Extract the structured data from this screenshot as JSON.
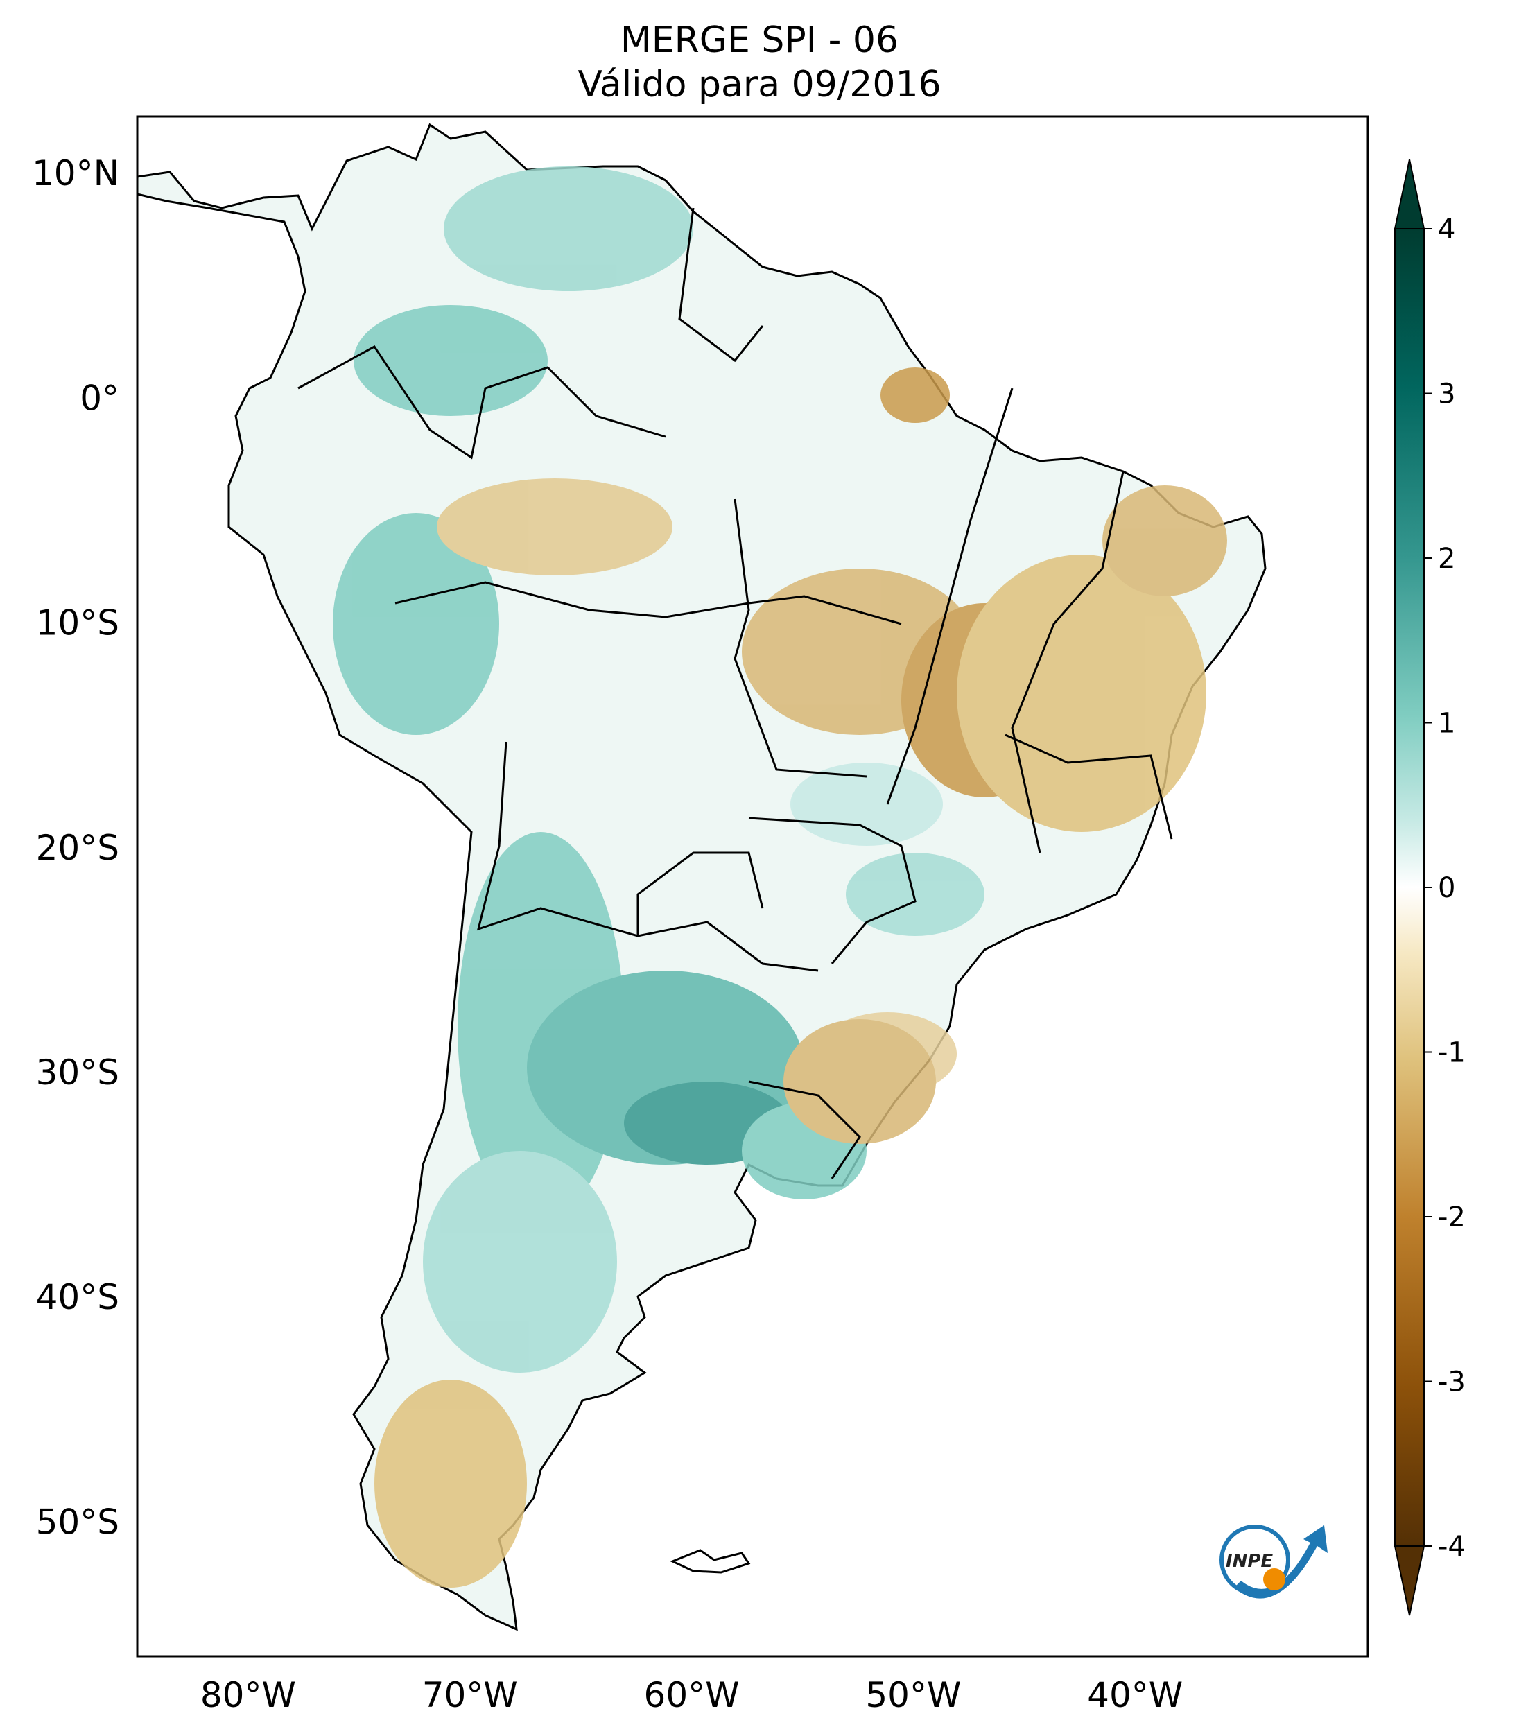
{
  "title": {
    "line1": "MERGE   SPI - 06",
    "line2": "Válido para 09/2016"
  },
  "map": {
    "lat_labels": [
      "10°N",
      "0°",
      "10°S",
      "20°S",
      "30°S",
      "40°S",
      "50°S"
    ],
    "lon_labels": [
      "80°W",
      "70°W",
      "60°W",
      "50°W",
      "40°W"
    ],
    "lat_values": [
      10,
      0,
      -10,
      -20,
      -30,
      -40,
      -50
    ],
    "lon_values": [
      -80,
      -70,
      -60,
      -50,
      -40
    ],
    "extent": {
      "lon_min": -85,
      "lon_max": -29.5,
      "lat_min": -56,
      "lat_max": 12.5
    }
  },
  "colorbar": {
    "ticks": [
      "4",
      "3",
      "2",
      "1",
      "0",
      "-1",
      "-2",
      "-3",
      "-4"
    ],
    "values": [
      4,
      3,
      2,
      1,
      0,
      -1,
      -2,
      -3,
      -4
    ],
    "range": [
      -4,
      4
    ],
    "colormap": [
      "#543005",
      "#8c510a",
      "#bf812d",
      "#dfc27d",
      "#f6e8c3",
      "#ffffff",
      "#c7eae5",
      "#80cdc1",
      "#35978f",
      "#01665e",
      "#003c30"
    ]
  },
  "logo": {
    "text": "INPE"
  }
}
